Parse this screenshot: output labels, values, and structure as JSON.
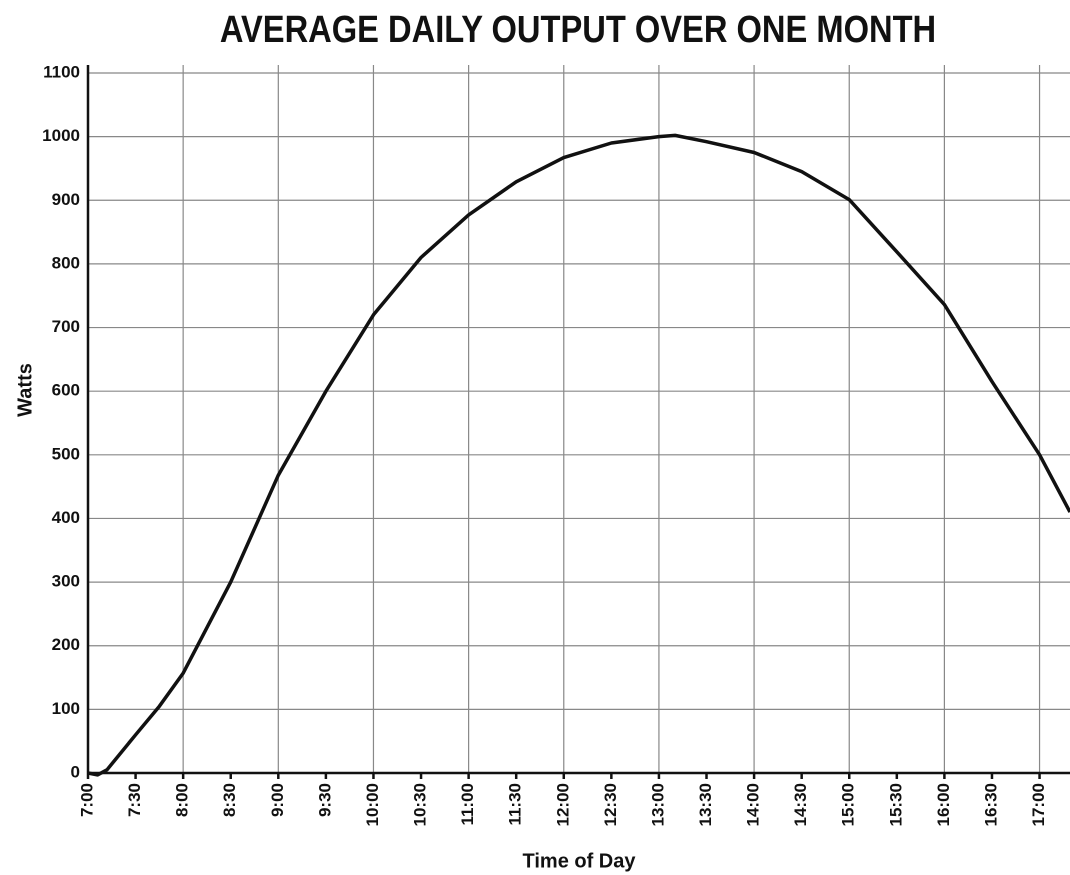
{
  "chart_data": {
    "type": "line",
    "title": "AVERAGE DAILY OUTPUT OVER ONE MONTH",
    "x_label": "Time of Day",
    "y_label": "Watts",
    "x": [
      7.0,
      7.1,
      7.2,
      7.5,
      7.75,
      8.0,
      8.5,
      9.0,
      9.5,
      10.0,
      10.5,
      11.0,
      11.5,
      12.0,
      12.5,
      13.0,
      13.17,
      13.5,
      14.0,
      14.5,
      15.0,
      15.5,
      16.0,
      16.5,
      17.0,
      17.32
    ],
    "series": [
      {
        "name": "Watts",
        "color": "#111111",
        "values": [
          0,
          -3,
          5,
          60,
          105,
          157,
          300,
          468,
          600,
          720,
          810,
          877,
          929,
          967,
          990,
          1000,
          1002,
          992,
          975,
          945,
          901,
          819,
          736,
          615,
          500,
          410
        ]
      }
    ],
    "xlim": [
      7,
      17.32
    ],
    "ylim": [
      0,
      1100
    ],
    "xticks": [
      {
        "value": 7,
        "label": "7:00"
      },
      {
        "value": 7.5,
        "label": "7:30"
      },
      {
        "value": 8,
        "label": "8:00"
      },
      {
        "value": 8.5,
        "label": "8:30"
      },
      {
        "value": 9,
        "label": "9:00"
      },
      {
        "value": 9.5,
        "label": "9:30"
      },
      {
        "value": 10,
        "label": "10:00"
      },
      {
        "value": 10.5,
        "label": "10:30"
      },
      {
        "value": 11,
        "label": "11:00"
      },
      {
        "value": 11.5,
        "label": "11:30"
      },
      {
        "value": 12,
        "label": "12:00"
      },
      {
        "value": 12.5,
        "label": "12:30"
      },
      {
        "value": 13,
        "label": "13:00"
      },
      {
        "value": 13.5,
        "label": "13:30"
      },
      {
        "value": 14,
        "label": "14:00"
      },
      {
        "value": 14.5,
        "label": "14:30"
      },
      {
        "value": 15,
        "label": "15:00"
      },
      {
        "value": 15.5,
        "label": "15:30"
      },
      {
        "value": 16,
        "label": "16:00"
      },
      {
        "value": 16.5,
        "label": "16:30"
      },
      {
        "value": 17,
        "label": "17:00"
      }
    ],
    "yticks": [
      0,
      100,
      200,
      300,
      400,
      500,
      600,
      700,
      800,
      900,
      1000,
      1100
    ],
    "grid": true
  }
}
